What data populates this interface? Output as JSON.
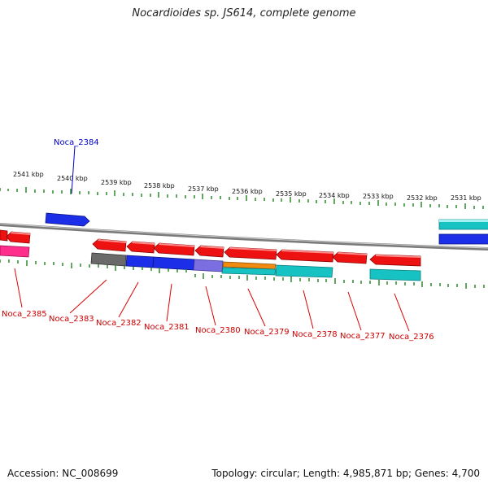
{
  "title": "Nocardioides sp. JS614, complete genome",
  "footer": {
    "accession": "Accession: NC_008699",
    "summary": "Topology: circular; Length: 4,985,871 bp; Genes: 4,700"
  },
  "colors": {
    "forward_strand_gene": "#1020e0",
    "reverse_strand_gene": "#ee1111",
    "backbone": "#888888",
    "tick": "#2a8a2a",
    "label_reverse": "#cc0000",
    "label_forward": "#0000cc"
  },
  "scale_labels": [
    "2541 kbp",
    "2540 kbp",
    "2539 kbp",
    "2538 kbp",
    "2537 kbp",
    "2536 kbp",
    "2535 kbp",
    "2534 kbp",
    "2533 kbp",
    "2532 kbp",
    "2531 kbp"
  ],
  "gene_labels": [
    {
      "name": "Noca_2384",
      "strand": "forward"
    },
    {
      "name": "Noca_2385",
      "strand": "reverse"
    },
    {
      "name": "Noca_2383",
      "strand": "reverse"
    },
    {
      "name": "Noca_2382",
      "strand": "reverse"
    },
    {
      "name": "Noca_2381",
      "strand": "reverse"
    },
    {
      "name": "Noca_2380",
      "strand": "reverse"
    },
    {
      "name": "Noca_2379",
      "strand": "reverse"
    },
    {
      "name": "Noca_2378",
      "strand": "reverse"
    },
    {
      "name": "Noca_2377",
      "strand": "reverse"
    },
    {
      "name": "Noca_2376",
      "strand": "reverse"
    }
  ]
}
